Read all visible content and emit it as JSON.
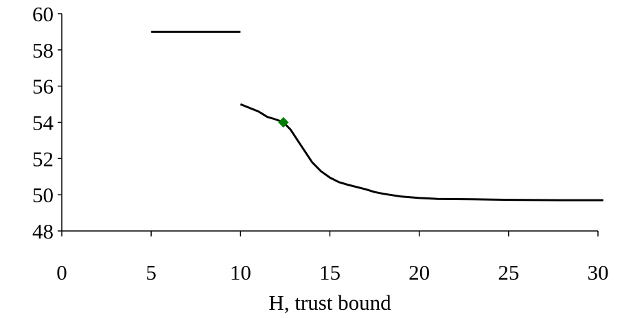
{
  "chart_data": {
    "type": "line",
    "xlabel": "H, trust bound",
    "ylabel": "",
    "xlim": [
      0,
      30
    ],
    "ylim": [
      48,
      60
    ],
    "xticks": [
      "0",
      "5",
      "10",
      "15",
      "20",
      "25",
      "30"
    ],
    "yticks": [
      "48",
      "50",
      "52",
      "54",
      "56",
      "58",
      "60"
    ],
    "grid": false,
    "legend": "none",
    "series": [
      {
        "color": "#000000",
        "points": [
          [
            5,
            59
          ],
          [
            10,
            59
          ]
        ]
      },
      {
        "color": "#000000",
        "points": [
          [
            10,
            55
          ],
          [
            10.5,
            54.8
          ],
          [
            11,
            54.6
          ],
          [
            11.5,
            54.3
          ],
          [
            12,
            54.15
          ],
          [
            12.4,
            54.0
          ],
          [
            12.8,
            53.6
          ],
          [
            13.2,
            53.0
          ],
          [
            13.6,
            52.4
          ],
          [
            14.0,
            51.8
          ],
          [
            14.5,
            51.3
          ],
          [
            15,
            50.95
          ],
          [
            15.5,
            50.7
          ],
          [
            16,
            50.55
          ],
          [
            17,
            50.3
          ],
          [
            17.5,
            50.15
          ],
          [
            18,
            50.05
          ],
          [
            19,
            49.9
          ],
          [
            20,
            49.82
          ],
          [
            21,
            49.77
          ],
          [
            23,
            49.75
          ],
          [
            25,
            49.72
          ],
          [
            28,
            49.7
          ],
          [
            30.3,
            49.7
          ]
        ]
      }
    ],
    "highlight_point": {
      "x": 12.4,
      "y": 54.0,
      "color": "#008000",
      "marker": "diamond"
    }
  }
}
